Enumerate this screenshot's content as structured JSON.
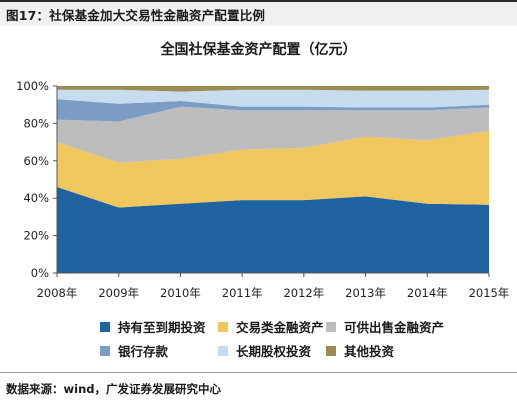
{
  "figure": {
    "title": "图17：社保基金加大交易性金融资产配置比例",
    "source": "数据来源：wind，广发证券发展研究中心"
  },
  "chart_data": {
    "type": "area",
    "stacked": true,
    "normalized": true,
    "title": "全国社保基金资产配置（亿元）",
    "xlabel": "",
    "ylabel": "",
    "x": [
      "2008年",
      "2009年",
      "2010年",
      "2011年",
      "2012年",
      "2013年",
      "2014年",
      "2015年"
    ],
    "ylim": [
      0,
      100
    ],
    "yticks": [
      "0%",
      "20%",
      "40%",
      "60%",
      "80%",
      "100%"
    ],
    "grid": false,
    "legend_position": "bottom",
    "series": [
      {
        "name": "持有至到期投资",
        "color": "#1f64a0",
        "values": [
          46,
          35,
          37,
          39,
          39,
          41,
          37,
          36.5
        ]
      },
      {
        "name": "交易类金融资产",
        "color": "#f0c75e",
        "values": [
          24,
          24,
          24,
          27,
          28,
          32,
          34,
          39.5
        ]
      },
      {
        "name": "可供出售金融资产",
        "color": "#bdbdbd",
        "values": [
          12,
          22,
          28,
          21,
          20,
          14,
          16,
          12.5
        ]
      },
      {
        "name": "银行存款",
        "color": "#7a9cc6",
        "values": [
          11,
          9.5,
          3,
          2,
          2,
          1.5,
          1.5,
          1.5
        ]
      },
      {
        "name": "长期股权投资",
        "color": "#c8dcf0",
        "values": [
          5,
          7.5,
          5,
          9,
          9,
          9,
          9,
          8
        ]
      },
      {
        "name": "其他投资",
        "color": "#9c8c52",
        "values": [
          2,
          2,
          3,
          2,
          2,
          2.5,
          2.5,
          2
        ]
      }
    ]
  }
}
